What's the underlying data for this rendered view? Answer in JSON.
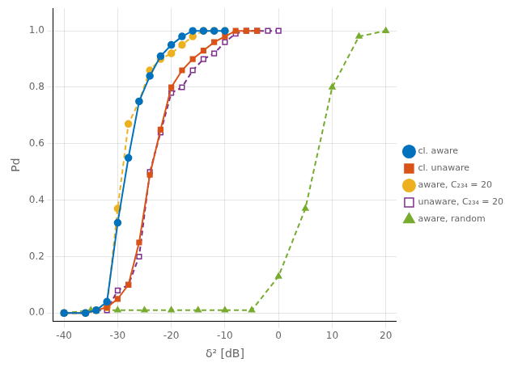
{
  "chart_data": {
    "type": "line",
    "x_label": "δ² [dB]",
    "y_label": "Pd",
    "xlim": [
      -42,
      22
    ],
    "ylim": [
      -0.03,
      1.08
    ],
    "xticks": [
      -40,
      -30,
      -20,
      -10,
      0,
      10,
      20
    ],
    "yticks": [
      {
        "value": 0.0,
        "label": "0.0"
      },
      0.2,
      0.4,
      0.6,
      0.8,
      {
        "value": 1.0,
        "label": "1.0"
      }
    ],
    "grid": true,
    "legend": "right",
    "series": [
      {
        "name": "cl. aware",
        "color": "#0072BD",
        "marker": "circle",
        "line_style": "solid",
        "x": [
          -40,
          -36,
          -34,
          -32,
          -30,
          -28,
          -26,
          -24,
          -22,
          -20,
          -18,
          -16,
          -14,
          -12,
          -10
        ],
        "values": [
          0.0,
          0.0,
          0.01,
          0.04,
          0.32,
          0.55,
          0.75,
          0.84,
          0.91,
          0.95,
          0.98,
          1.0,
          1.0,
          1.0,
          1.0
        ]
      },
      {
        "name": "cl. unaware",
        "color": "#D95319",
        "marker": "square",
        "line_style": "solid",
        "x": [
          -40,
          -36,
          -34,
          -32,
          -30,
          -28,
          -26,
          -24,
          -22,
          -20,
          -18,
          -16,
          -14,
          -12,
          -10,
          -8,
          -6,
          -4
        ],
        "values": [
          0.0,
          0.0,
          0.01,
          0.02,
          0.05,
          0.1,
          0.25,
          0.49,
          0.65,
          0.8,
          0.86,
          0.9,
          0.93,
          0.96,
          0.98,
          1.0,
          1.0,
          1.0
        ]
      },
      {
        "name": "aware, C₂₃₄ = 20",
        "color": "#EDB120",
        "marker": "circle",
        "line_style": "dashed",
        "x": [
          -40,
          -36,
          -34,
          -32,
          -30,
          -28,
          -26,
          -24,
          -22,
          -20,
          -18,
          -16,
          -14,
          -12,
          -10
        ],
        "values": [
          0.0,
          0.0,
          0.01,
          0.02,
          0.37,
          0.67,
          0.75,
          0.86,
          0.9,
          0.92,
          0.95,
          0.98,
          1.0,
          1.0,
          1.0
        ]
      },
      {
        "name": "unaware, C₂₃₄ = 20",
        "color": "#7E2F8E",
        "marker": "open_square",
        "line_style": "dashed",
        "x": [
          -40,
          -36,
          -34,
          -32,
          -30,
          -28,
          -26,
          -24,
          -22,
          -20,
          -18,
          -16,
          -14,
          -12,
          -10,
          -8,
          -6,
          -4,
          -2,
          0
        ],
        "values": [
          0.0,
          0.0,
          0.01,
          0.01,
          0.08,
          0.1,
          0.2,
          0.5,
          0.64,
          0.78,
          0.8,
          0.86,
          0.9,
          0.92,
          0.96,
          0.99,
          1.0,
          1.0,
          1.0,
          1.0
        ]
      },
      {
        "name": "aware, random",
        "color": "#77AC30",
        "marker": "triangle",
        "line_style": "dashed",
        "x": [
          -40,
          -35,
          -30,
          -25,
          -20,
          -15,
          -10,
          -5,
          0,
          5,
          10,
          15,
          20
        ],
        "values": [
          0.0,
          0.01,
          0.01,
          0.01,
          0.01,
          0.01,
          0.01,
          0.01,
          0.13,
          0.37,
          0.8,
          0.98,
          1.0
        ]
      }
    ]
  }
}
